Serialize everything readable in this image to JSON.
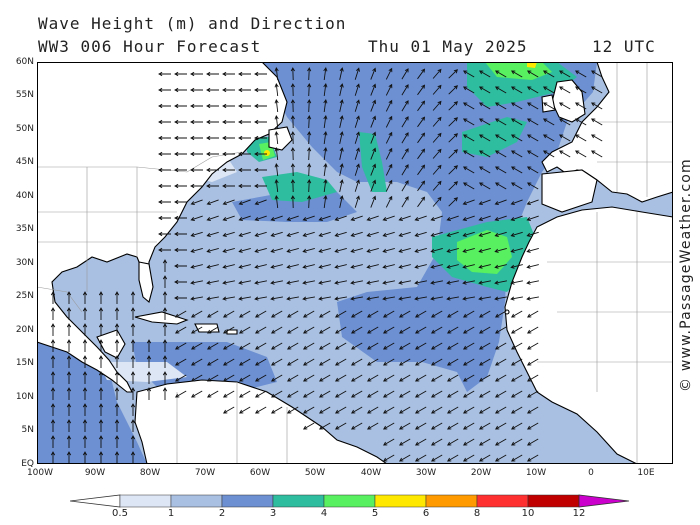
{
  "title": {
    "line1": "Wave Height (m) and Direction",
    "line2": "WW3 006 Hour Forecast",
    "date": "Thu 01 May 2025",
    "utc": "12 UTC"
  },
  "credit": "© www.PassageWeather.com",
  "axes": {
    "lat_labels": [
      "60N",
      "55N",
      "50N",
      "45N",
      "40N",
      "35N",
      "30N",
      "25N",
      "20N",
      "15N",
      "10N",
      "5N",
      "EQ"
    ],
    "lon_labels": [
      "100W",
      "90W",
      "80W",
      "70W",
      "60W",
      "50W",
      "40W",
      "30W",
      "20W",
      "10W",
      "0",
      "10E"
    ]
  },
  "legend": {
    "bins": [
      {
        "label": "0.5",
        "color": "#dde6f4"
      },
      {
        "label": "1",
        "color": "#a9c0e2"
      },
      {
        "label": "2",
        "color": "#6c90d2"
      },
      {
        "label": "3",
        "color": "#2fbd9f"
      },
      {
        "label": "4",
        "color": "#58f060"
      },
      {
        "label": "5",
        "color": "#ffe800"
      },
      {
        "label": "6",
        "color": "#ff9a00"
      },
      {
        "label": "8",
        "color": "#ff3030"
      },
      {
        "label": "10",
        "color": "#c00000"
      },
      {
        "label": "12",
        "color": "#cc00cc"
      }
    ]
  },
  "colors": {
    "land": "#ffffff",
    "coast": "#000000",
    "borders": "#9a9a9a",
    "arrow": "#111111"
  }
}
